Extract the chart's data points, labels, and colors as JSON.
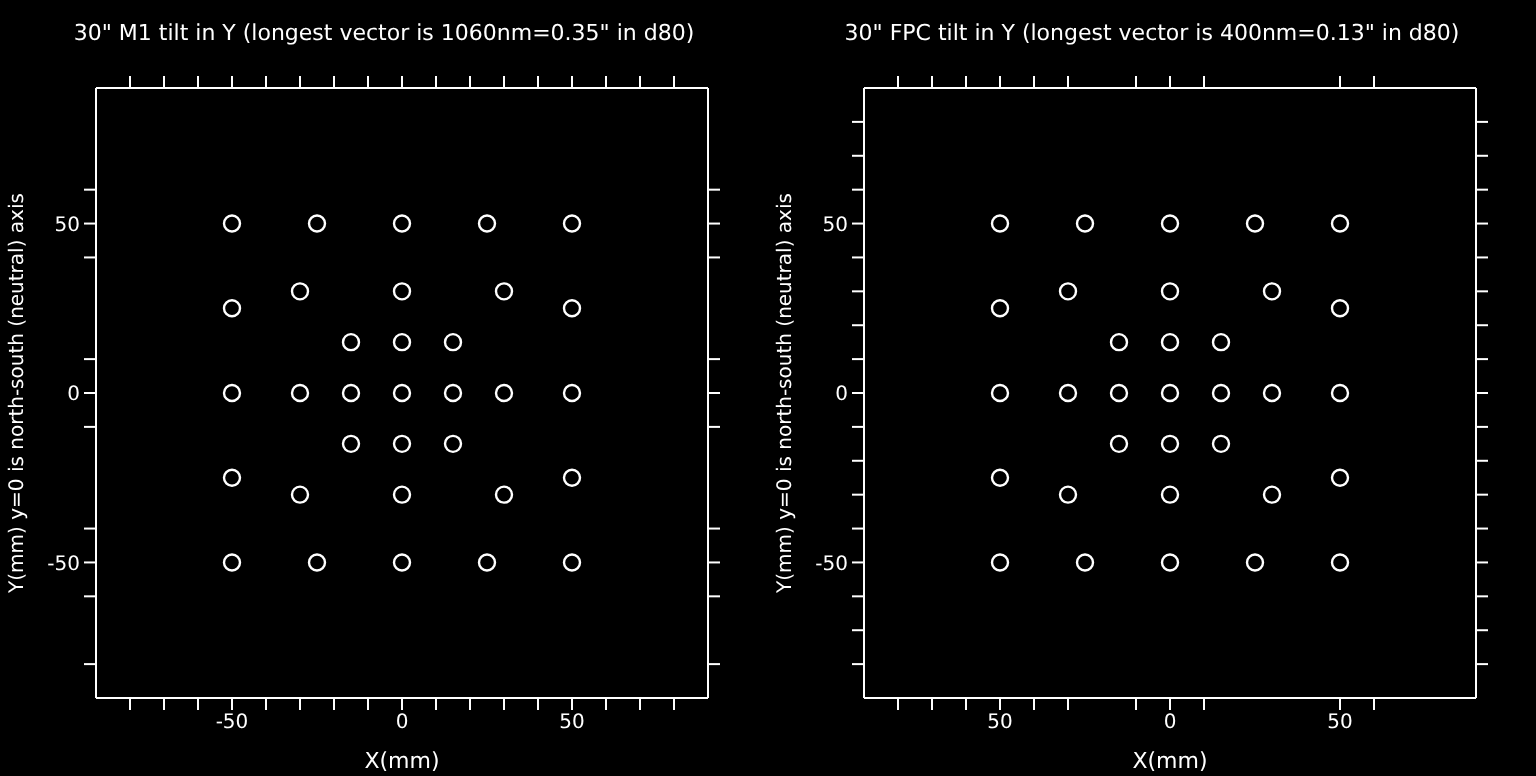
{
  "chart_data": [
    {
      "type": "scatter",
      "title": "30\" M1 tilt in Y (longest vector is 1060nm=0.35\" in d80)",
      "xlabel": "X(mm)",
      "ylabel": "Y(mm) y=0 is north-south (neutral) axis",
      "xlim": [
        -90,
        90
      ],
      "ylim": [
        -90,
        90
      ],
      "xticks": [
        {
          "value": -80,
          "label": null
        },
        {
          "value": -70,
          "label": null
        },
        {
          "value": -60,
          "label": null
        },
        -50,
        {
          "value": -40,
          "label": null
        },
        {
          "value": -30,
          "label": null
        },
        {
          "value": -20,
          "label": null
        },
        {
          "value": -10,
          "label": null
        },
        0,
        {
          "value": 10,
          "label": null
        },
        {
          "value": 20,
          "label": null
        },
        {
          "value": 30,
          "label": null
        },
        {
          "value": 40,
          "label": null
        },
        50,
        {
          "value": 60,
          "label": null
        },
        {
          "value": 70,
          "label": null
        },
        {
          "value": 80,
          "label": null
        }
      ],
      "yticks": [
        {
          "value": -80,
          "label": null
        },
        {
          "value": -60,
          "label": null
        },
        -50,
        {
          "value": -40,
          "label": null
        },
        {
          "value": -10,
          "label": null
        },
        0,
        {
          "value": 10,
          "label": null
        },
        {
          "value": 40,
          "label": null
        },
        50,
        {
          "value": 60,
          "label": null
        }
      ],
      "marker": "circle",
      "series": [
        {
          "color": "#ffffff",
          "x": [
            -50,
            -25,
            0,
            25,
            50,
            -30,
            0,
            30,
            -50,
            50,
            -15,
            0,
            15,
            -50,
            -30,
            -15,
            0,
            15,
            30,
            50,
            -15,
            0,
            15,
            -50,
            50,
            -30,
            0,
            30,
            -50,
            -25,
            0,
            25,
            50
          ],
          "values": [
            50,
            50,
            50,
            50,
            50,
            30,
            30,
            30,
            25,
            25,
            15,
            15,
            15,
            0,
            0,
            0,
            0,
            0,
            0,
            0,
            -15,
            -15,
            -15,
            -25,
            -25,
            -30,
            -30,
            -30,
            -50,
            -50,
            -50,
            -50,
            -50
          ]
        }
      ]
    },
    {
      "type": "scatter",
      "title": "30\" FPC tilt in Y (longest vector is 400nm=0.13\" in d80)",
      "xlabel": "X(mm)",
      "ylabel": "Y(mm) y=0 is north-south (neutral) axis",
      "xlim": [
        -90,
        90
      ],
      "ylim": [
        -90,
        90
      ],
      "xticks": [
        {
          "value": -80,
          "label": null
        },
        {
          "value": -70,
          "label": null
        },
        {
          "value": -60,
          "label": null
        },
        {
          "value": -50,
          "label": "50"
        },
        {
          "value": -40,
          "label": null
        },
        {
          "value": -30,
          "label": null
        },
        {
          "value": -10,
          "label": null
        },
        0,
        {
          "value": 10,
          "label": null
        },
        50,
        {
          "value": 60,
          "label": null
        }
      ],
      "yticks": [
        {
          "value": -80,
          "label": null
        },
        {
          "value": -70,
          "label": null
        },
        {
          "value": -60,
          "label": null
        },
        -50,
        {
          "value": -40,
          "label": null
        },
        {
          "value": -30,
          "label": null
        },
        {
          "value": -20,
          "label": null
        },
        {
          "value": -10,
          "label": null
        },
        0,
        {
          "value": 10,
          "label": null
        },
        {
          "value": 20,
          "label": null
        },
        {
          "value": 30,
          "label": null
        },
        {
          "value": 40,
          "label": null
        },
        50,
        {
          "value": 60,
          "label": null
        },
        {
          "value": 70,
          "label": null
        },
        {
          "value": 80,
          "label": null
        }
      ],
      "marker": "circle",
      "series": [
        {
          "color": "#ffffff",
          "x": [
            -50,
            -25,
            0,
            25,
            50,
            -30,
            0,
            30,
            -50,
            50,
            -15,
            0,
            15,
            -50,
            -30,
            -15,
            0,
            15,
            30,
            50,
            -15,
            0,
            15,
            -50,
            50,
            -30,
            0,
            30,
            -50,
            -25,
            0,
            25,
            50
          ],
          "values": [
            50,
            50,
            50,
            50,
            50,
            30,
            30,
            30,
            25,
            25,
            15,
            15,
            15,
            0,
            0,
            0,
            0,
            0,
            0,
            0,
            -15,
            -15,
            -15,
            -25,
            -25,
            -30,
            -30,
            -30,
            -50,
            -50,
            -50,
            -50,
            -50
          ]
        }
      ]
    }
  ]
}
